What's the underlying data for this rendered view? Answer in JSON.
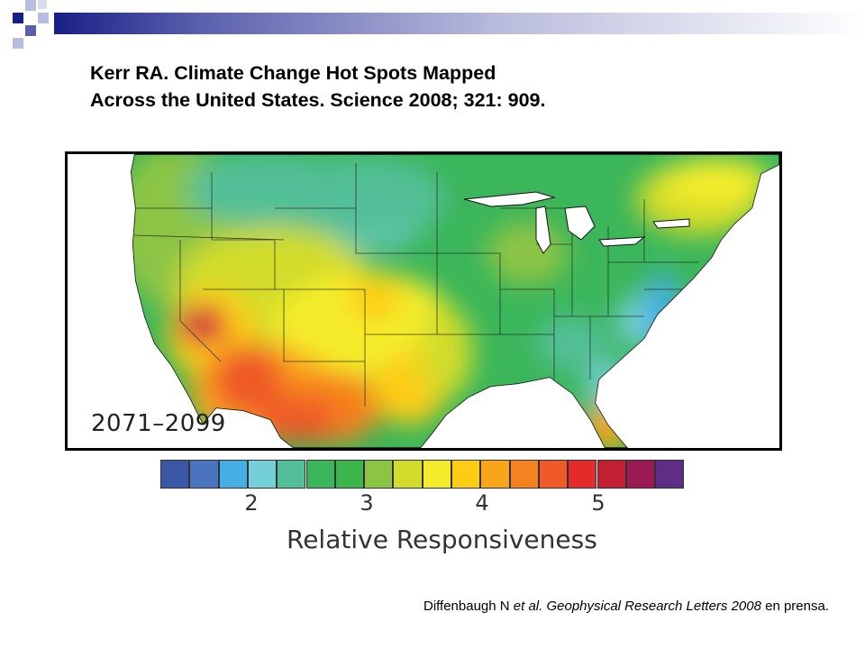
{
  "slide": {
    "title_line1": "Kerr RA. Climate Change Hot Spots Mapped",
    "title_line2": "Across the United States. Science 2008; 321: 909."
  },
  "map": {
    "period_label": "2071–2099",
    "region": "Continental United States"
  },
  "legend": {
    "label": "Relative Responsiveness",
    "ticks": [
      "2",
      "3",
      "4",
      "5"
    ],
    "colors": [
      "#3a56a6",
      "#4a74c0",
      "#45aee4",
      "#75cfd8",
      "#53bf98",
      "#3bb65a",
      "#3cb54a",
      "#8cc444",
      "#d2dc2b",
      "#f4ec2a",
      "#fccd14",
      "#f9a51c",
      "#f5821f",
      "#ef5a28",
      "#e52a2a",
      "#c42035",
      "#9b1a53",
      "#5f2d85"
    ]
  },
  "citation": {
    "author": "Diffenbaugh N ",
    "etal": "et al. Geophysical Research Letters 2008",
    "rest": " en prensa."
  }
}
